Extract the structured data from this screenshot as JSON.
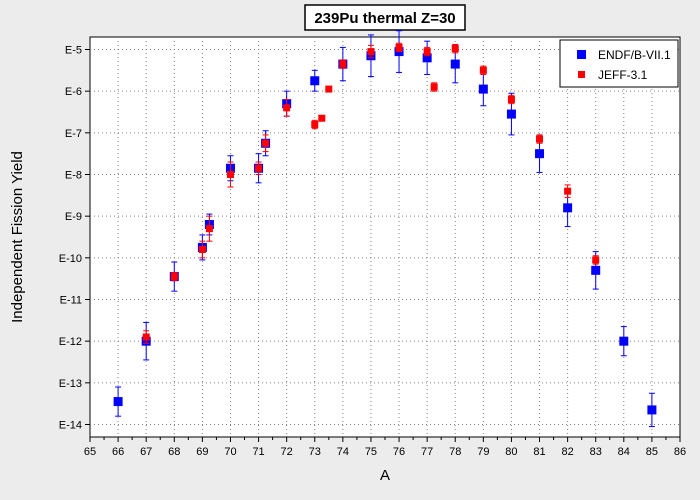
{
  "chart_data": {
    "type": "scatter",
    "title": "239Pu thermal Z=30",
    "xlabel": "A",
    "ylabel": "Independent Fission Yield",
    "xlim": [
      65,
      86
    ],
    "ylim_exponent": [
      -14.3,
      -4.7
    ],
    "yscale": "log",
    "grid": true,
    "legend_position": "top-right",
    "x_ticks": [
      "65",
      "66",
      "67",
      "68",
      "69",
      "70",
      "71",
      "72",
      "73",
      "74",
      "75",
      "76",
      "77",
      "78",
      "79",
      "80",
      "81",
      "82",
      "83",
      "84",
      "85",
      "86"
    ],
    "y_ticks": [
      {
        "label": "E-5",
        "exp": -5
      },
      {
        "label": "E-6",
        "exp": -6
      },
      {
        "label": "E-7",
        "exp": -7
      },
      {
        "label": "E-8",
        "exp": -8
      },
      {
        "label": "E-9",
        "exp": -9
      },
      {
        "label": "E-10",
        "exp": -10
      },
      {
        "label": "E-11",
        "exp": -11
      },
      {
        "label": "E-12",
        "exp": -12
      },
      {
        "label": "E-13",
        "exp": -13
      },
      {
        "label": "E-14",
        "exp": -14
      }
    ],
    "series": [
      {
        "name": "ENDF/B-VII.1",
        "color": "#0000ff",
        "marker_size": 9,
        "points": [
          {
            "x": 66,
            "y": -13.45,
            "err": 0.35
          },
          {
            "x": 67,
            "y": -12.0,
            "err": 0.45
          },
          {
            "x": 68,
            "y": -10.45,
            "err": 0.35
          },
          {
            "x": 69,
            "y": -9.75,
            "err": 0.3
          },
          {
            "x": 69.25,
            "y": -9.2,
            "err": 0.25
          },
          {
            "x": 70,
            "y": -7.85,
            "err": 0.3
          },
          {
            "x": 71,
            "y": -7.85,
            "err": 0.35
          },
          {
            "x": 71.25,
            "y": -7.25,
            "err": 0.3
          },
          {
            "x": 72,
            "y": -6.3,
            "err": 0.3
          },
          {
            "x": 73,
            "y": -5.75,
            "err": 0.25
          },
          {
            "x": 74,
            "y": -5.35,
            "err": 0.4
          },
          {
            "x": 75,
            "y": -5.15,
            "err": 0.5
          },
          {
            "x": 76,
            "y": -5.05,
            "err": 0.5
          },
          {
            "x": 77,
            "y": -5.2,
            "err": 0.4
          },
          {
            "x": 78,
            "y": -5.35,
            "err": 0.45
          },
          {
            "x": 79,
            "y": -5.95,
            "err": 0.4
          },
          {
            "x": 80,
            "y": -6.55,
            "err": 0.5
          },
          {
            "x": 81,
            "y": -7.5,
            "err": 0.45
          },
          {
            "x": 82,
            "y": -8.8,
            "err": 0.45
          },
          {
            "x": 83,
            "y": -10.3,
            "err": 0.45
          },
          {
            "x": 84,
            "y": -12.0,
            "err": 0.35
          },
          {
            "x": 85,
            "y": -13.65,
            "err": 0.4
          }
        ]
      },
      {
        "name": "JEFF-3.1",
        "color": "#ff0000",
        "marker_size": 7,
        "points": [
          {
            "x": 67,
            "y": -11.9,
            "err": 0.15
          },
          {
            "x": 68,
            "y": -10.45,
            "err": 0.1
          },
          {
            "x": 69,
            "y": -9.8,
            "err": 0.2
          },
          {
            "x": 69.25,
            "y": -9.3,
            "err": 0.3
          },
          {
            "x": 70,
            "y": -8.0,
            "err": 0.3
          },
          {
            "x": 71,
            "y": -7.85,
            "err": 0.15
          },
          {
            "x": 71.25,
            "y": -7.25,
            "err": 0.2
          },
          {
            "x": 72,
            "y": -6.4,
            "err": 0.2
          },
          {
            "x": 73,
            "y": -6.8,
            "err": 0.1
          },
          {
            "x": 73.25,
            "y": -6.65,
            "err": 0.0
          },
          {
            "x": 73.5,
            "y": -5.95,
            "err": 0.0
          },
          {
            "x": 74,
            "y": -5.35,
            "err": 0.1
          },
          {
            "x": 75,
            "y": -5.05,
            "err": 0.15
          },
          {
            "x": 76,
            "y": -4.95,
            "err": 0.1
          },
          {
            "x": 77,
            "y": -5.05,
            "err": 0.1
          },
          {
            "x": 77.25,
            "y": -5.9,
            "err": 0.1
          },
          {
            "x": 78,
            "y": -4.98,
            "err": 0.1
          },
          {
            "x": 79,
            "y": -5.5,
            "err": 0.1
          },
          {
            "x": 80,
            "y": -6.2,
            "err": 0.1
          },
          {
            "x": 81,
            "y": -7.15,
            "err": 0.1
          },
          {
            "x": 82,
            "y": -8.4,
            "err": 0.15
          },
          {
            "x": 83,
            "y": -10.05,
            "err": 0.1
          }
        ]
      }
    ]
  }
}
